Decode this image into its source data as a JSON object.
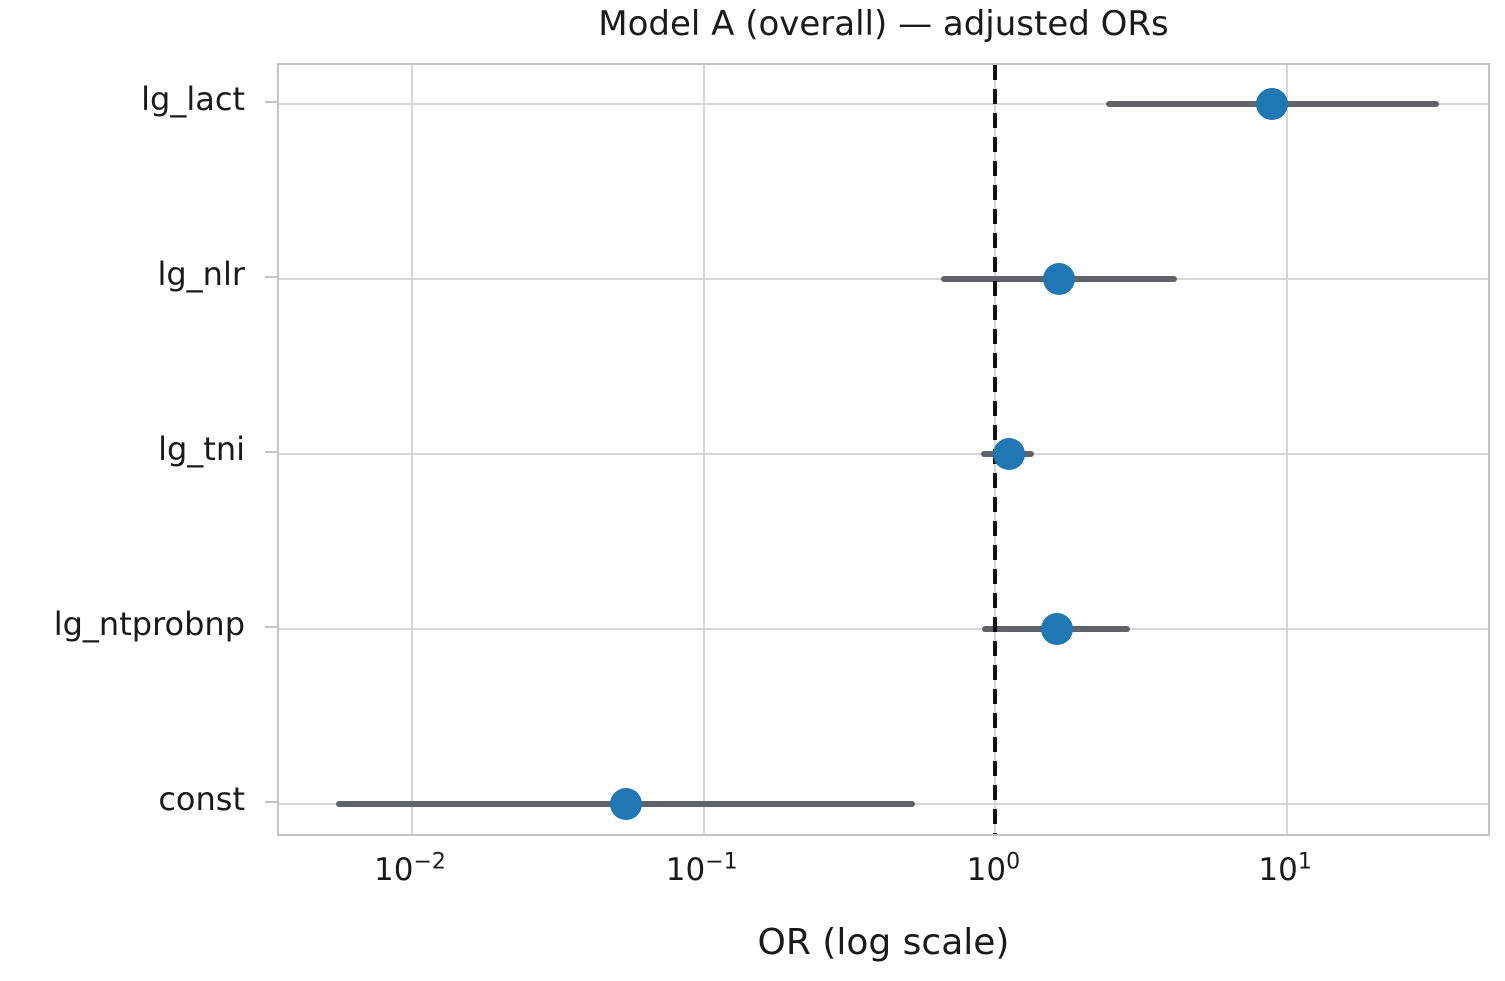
{
  "chart_data": {
    "type": "scatter",
    "subtype": "forest-plot",
    "title": "Model A (overall) — adjusted ORs",
    "xlabel": "OR (log scale)",
    "xscale": "log",
    "xlim": [
      0.0035,
      50.4
    ],
    "grid": true,
    "legend": "none",
    "reference_line": {
      "value": 1.0,
      "style": "dashed",
      "color": "#111111"
    },
    "xticks": [
      {
        "value": 0.01,
        "base": "10",
        "exp": "−2"
      },
      {
        "value": 0.1,
        "base": "10",
        "exp": "−1"
      },
      {
        "value": 1,
        "base": "10",
        "exp": "0"
      },
      {
        "value": 10,
        "base": "10",
        "exp": "1"
      }
    ],
    "categories": [
      "lg_lact",
      "lg_nlr",
      "lg_tni",
      "lg_ntprobnp",
      "const"
    ],
    "series": [
      {
        "points": [
          {
            "label": "lg_lact",
            "or": 8.9,
            "ci_low": 2.4,
            "ci_high": 33.2
          },
          {
            "label": "lg_nlr",
            "or": 1.65,
            "ci_low": 0.65,
            "ci_high": 4.2
          },
          {
            "label": "lg_tni",
            "or": 1.11,
            "ci_low": 0.89,
            "ci_high": 1.36
          },
          {
            "label": "lg_ntprobnp",
            "or": 1.62,
            "ci_low": 0.9,
            "ci_high": 2.9
          },
          {
            "label": "const",
            "or": 0.054,
            "ci_low": 0.0055,
            "ci_high": 0.53
          }
        ]
      }
    ],
    "colors": {
      "marker": "#1f77b4",
      "ci_line": "#5f6368",
      "grid": "#d6d6d6",
      "plot_border": "#c4c4c4",
      "reference": "#111111",
      "text": "#1a1a1a",
      "background": "#ffffff"
    }
  }
}
